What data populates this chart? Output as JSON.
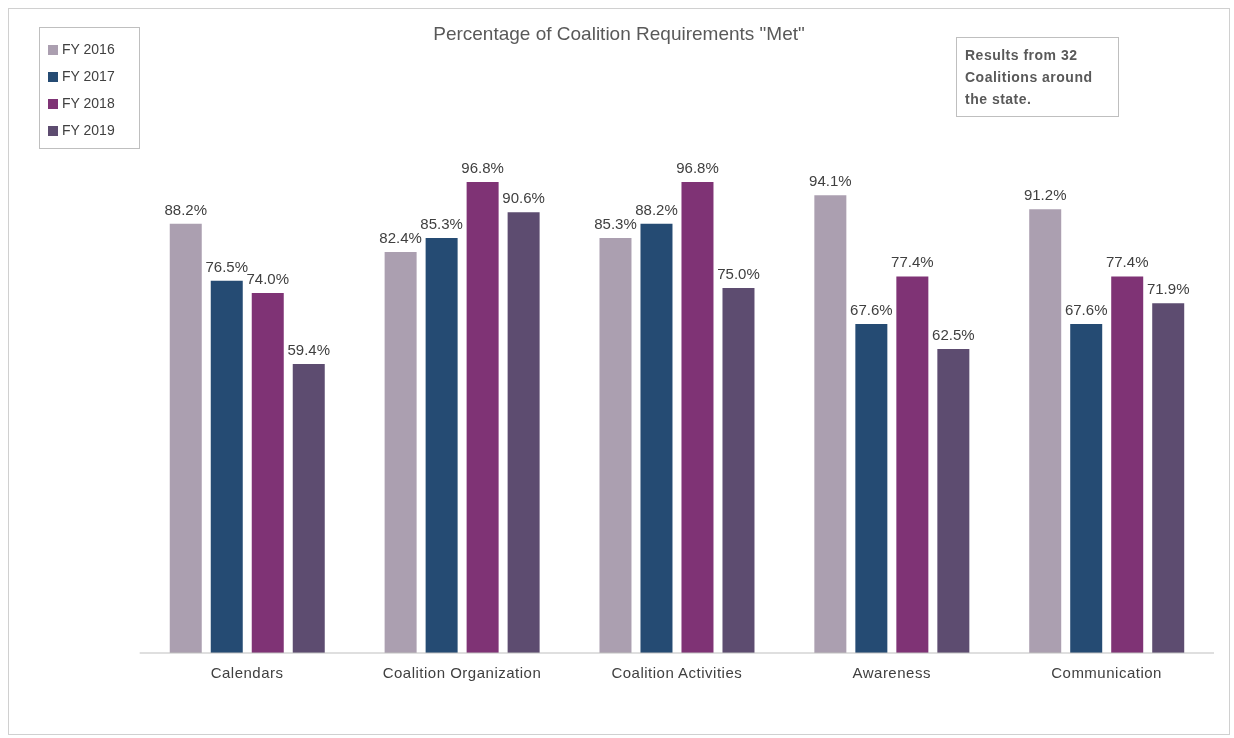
{
  "chart_data": {
    "type": "bar",
    "title": "Percentage of Coalition Requirements \"Met\"",
    "categories": [
      "Calendars",
      "Coalition Organization",
      "Coalition Activities",
      "Awareness",
      "Communication"
    ],
    "series": [
      {
        "name": "FY 2016",
        "color": "#ab9fb0",
        "values": [
          88.2,
          82.4,
          85.3,
          94.1,
          91.2
        ],
        "value_labels": [
          "88.2%",
          "82.4%",
          "85.3%",
          "94.1%",
          "91.2%"
        ]
      },
      {
        "name": "FY 2017",
        "color": "#254b73",
        "values": [
          76.5,
          85.3,
          88.2,
          67.6,
          67.6
        ],
        "value_labels": [
          "76.5%",
          "85.3%",
          "88.2%",
          "67.6%",
          "67.6%"
        ]
      },
      {
        "name": "FY 2018",
        "color": "#7f3375",
        "values": [
          74.0,
          96.8,
          96.8,
          77.4,
          77.4
        ],
        "value_labels": [
          "74.0%",
          "96.8%",
          "96.8%",
          "77.4%",
          "77.4%"
        ]
      },
      {
        "name": "FY 2019",
        "color": "#5d4c70",
        "values": [
          59.4,
          90.6,
          75.0,
          62.5,
          71.9
        ],
        "value_labels": [
          "59.4%",
          "90.6%",
          "75.0%",
          "62.5%",
          "71.9%"
        ]
      }
    ],
    "annotations": [
      "Results from 32 Coalitions around the state."
    ],
    "legend": "top left",
    "grid": false
  }
}
